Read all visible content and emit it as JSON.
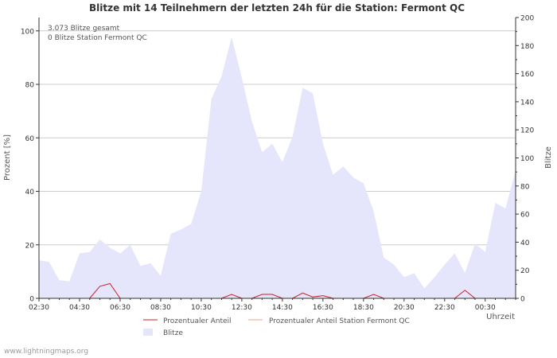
{
  "chart_data": {
    "type": "area",
    "title": "Blitze mit 14 Teilnehmern der letzten 24h für die Station: Fermont QC",
    "ylabel_left": "Prozent   [%]",
    "ylabel_right": "Blitze",
    "xlabel": "Uhrzeit",
    "annotations": [
      "3.073 Blitze gesamt",
      "0 Blitze Station Fermont QC"
    ],
    "left_axis": {
      "min": 0,
      "max": 105,
      "ticks": [
        0,
        20,
        40,
        60,
        80,
        100
      ]
    },
    "right_axis": {
      "min": 0,
      "max": 200,
      "ticks": [
        0,
        20,
        40,
        60,
        80,
        100,
        120,
        140,
        160,
        180,
        200
      ]
    },
    "x_tick_labels": [
      "02:30",
      "04:30",
      "06:30",
      "08:30",
      "10:30",
      "12:30",
      "14:30",
      "16:30",
      "18:30",
      "20:30",
      "22:30",
      "00:30"
    ],
    "x_tick_index_step": 4,
    "series": [
      {
        "name": "Blitze",
        "axis": "right",
        "color": "#e5e5fb",
        "values": [
          27,
          26,
          13,
          12,
          32,
          33,
          42,
          36,
          32,
          38,
          23,
          25,
          16,
          46,
          49,
          53,
          76,
          142,
          158,
          186,
          157,
          126,
          104,
          110,
          97,
          115,
          150,
          146,
          110,
          88,
          94,
          86,
          82,
          62,
          29,
          24,
          15,
          18,
          7,
          15,
          24,
          32,
          18,
          39,
          33,
          68,
          64,
          91
        ]
      },
      {
        "name": "Prozentualer Anteil",
        "axis": "left",
        "color": "#cc2222",
        "values": [
          0,
          0,
          0,
          0,
          0,
          0,
          4.5,
          5.5,
          0,
          0,
          0,
          0,
          0,
          0,
          0,
          0,
          0,
          0,
          0,
          1.5,
          0,
          0,
          1.5,
          1.5,
          0,
          0,
          2,
          0.5,
          1,
          0,
          0,
          0,
          0,
          1.5,
          0,
          0,
          0,
          0,
          0,
          0,
          0,
          0,
          3,
          0,
          0,
          0,
          0,
          0
        ]
      },
      {
        "name": "Prozentualer Anteil Station Fermont QC",
        "axis": "left",
        "color": "#f0a080",
        "values": [
          0,
          0,
          0,
          0,
          0,
          0,
          0,
          0,
          0,
          0,
          0,
          0,
          0,
          0,
          0,
          0,
          0,
          0,
          0,
          0,
          0,
          0,
          0,
          0,
          0,
          0,
          0,
          0,
          0,
          0,
          0,
          0,
          0,
          0,
          0,
          0,
          0,
          0,
          0,
          0,
          0,
          0,
          0,
          0,
          0,
          0,
          0,
          0
        ]
      }
    ],
    "legend": [
      "Prozentualer Anteil",
      "Prozentualer Anteil Station Fermont QC",
      "Blitze"
    ]
  },
  "footer": "www.lightningmaps.org"
}
